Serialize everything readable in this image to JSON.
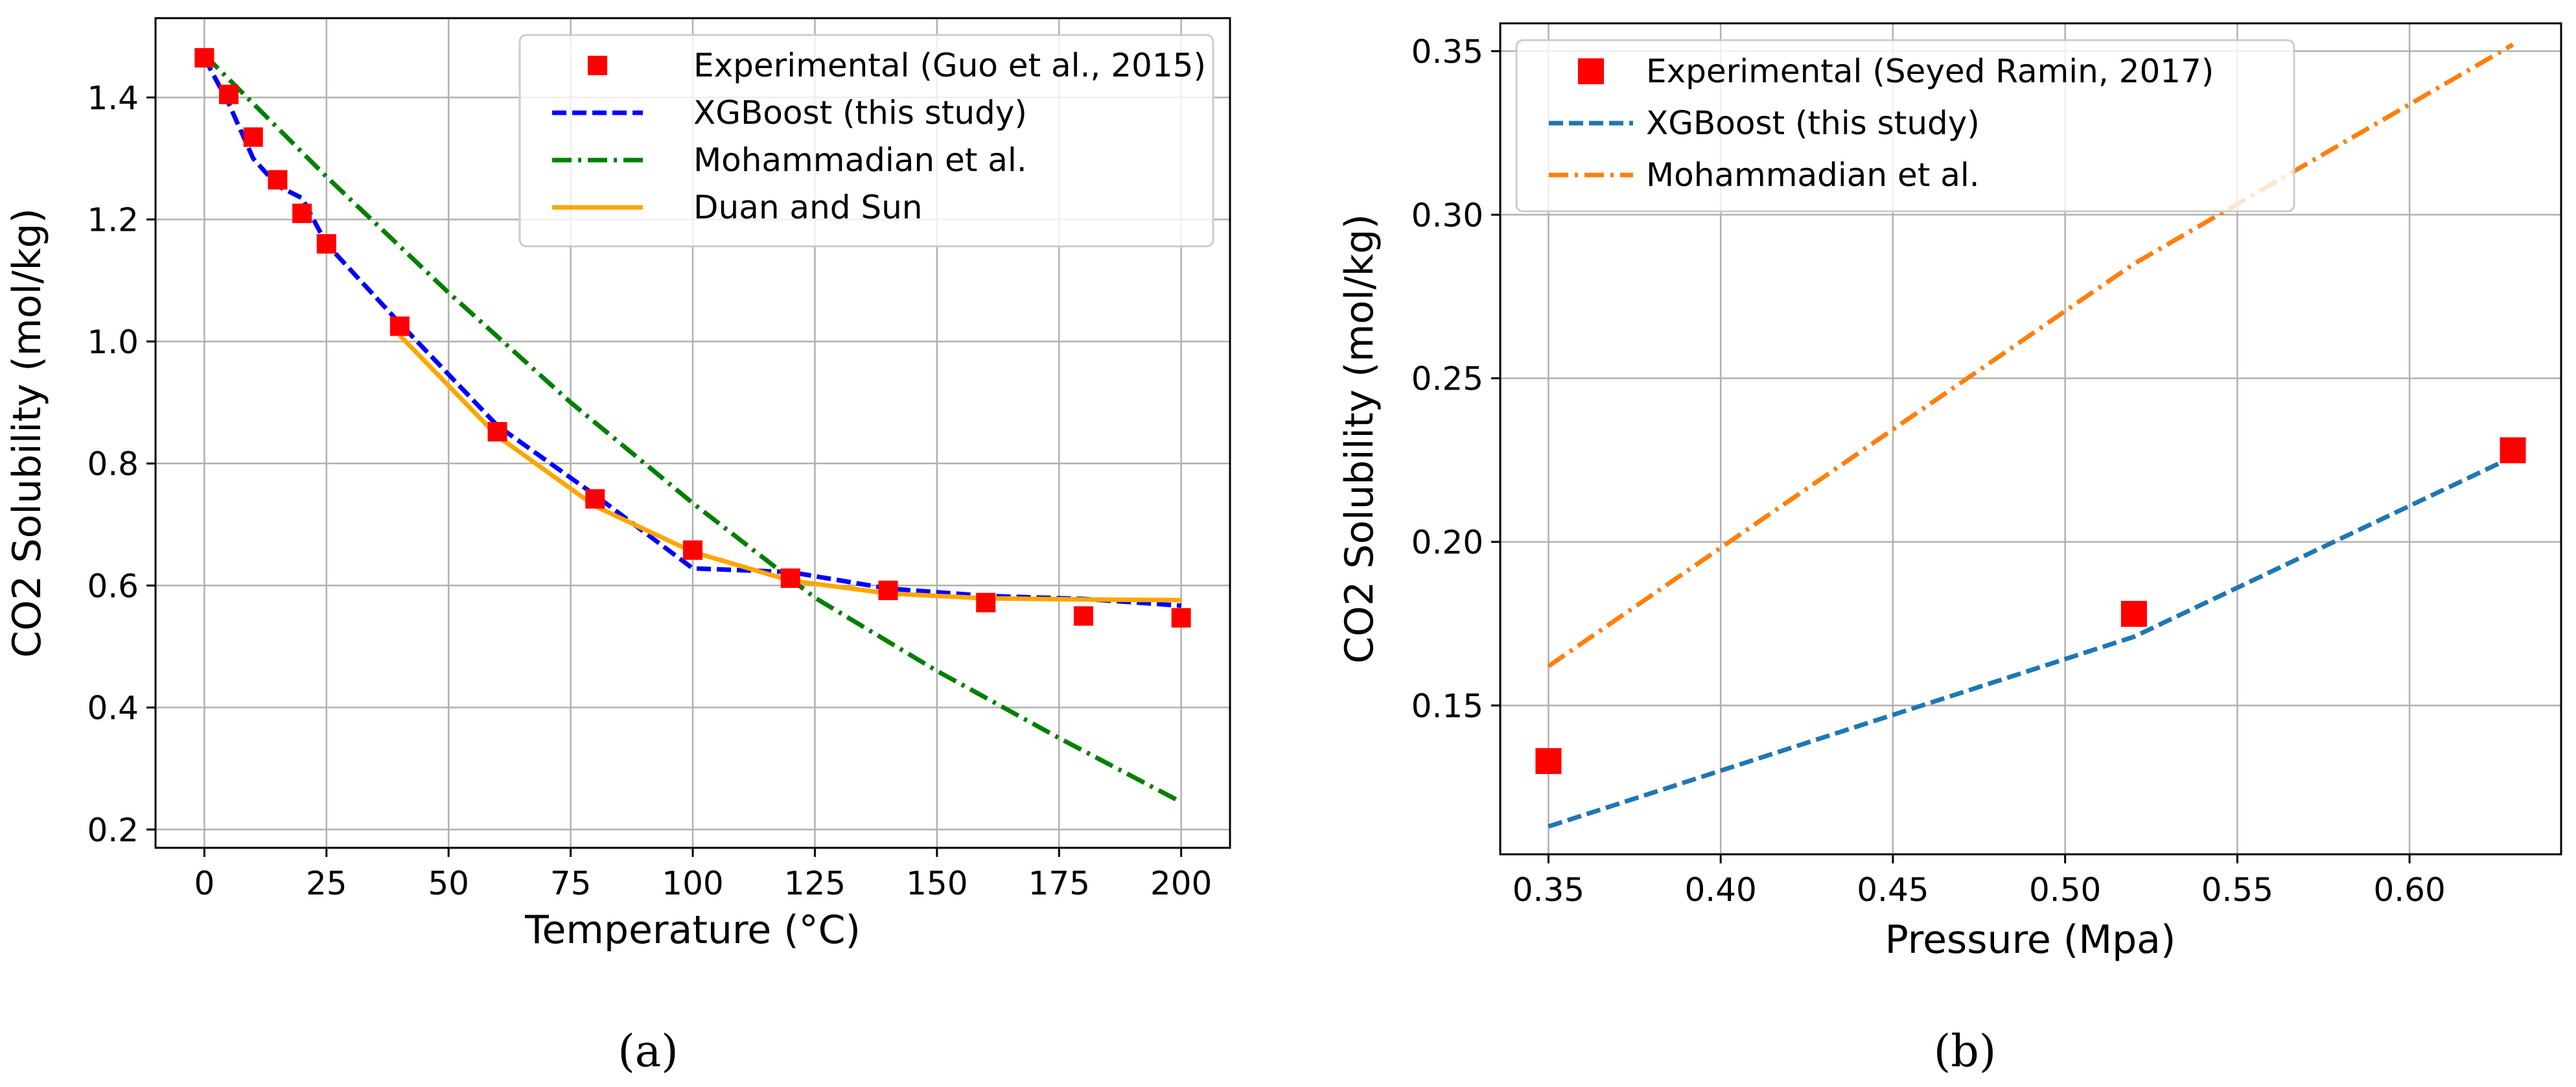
{
  "chart_data": [
    {
      "type": "line",
      "caption": "(a)",
      "xlabel": "Temperature (°C)",
      "ylabel": "CO2 Solubility (mol/kg)",
      "xlim": [
        -10,
        210
      ],
      "ylim": [
        0.17,
        1.53
      ],
      "xticks": [
        0,
        25,
        50,
        75,
        100,
        125,
        150,
        175,
        200
      ],
      "yticks": [
        0.2,
        0.4,
        0.6,
        0.8,
        1.0,
        1.2,
        1.4
      ],
      "xtick_labels": [
        "0",
        "25",
        "50",
        "75",
        "100",
        "125",
        "150",
        "175",
        "200"
      ],
      "ytick_labels": [
        "0.2",
        "0.4",
        "0.6",
        "0.8",
        "1.0",
        "1.2",
        "1.4"
      ],
      "grid": true,
      "legend_position": "top-right",
      "series": [
        {
          "name": "Experimental (Guo et al., 2015)",
          "kind": "scatter",
          "color": "#ff0000",
          "x": [
            0,
            5,
            10,
            15,
            20,
            25,
            40,
            60,
            80,
            100,
            120,
            140,
            160,
            180,
            200
          ],
          "y": [
            1.465,
            1.405,
            1.335,
            1.265,
            1.21,
            1.16,
            1.025,
            0.852,
            0.742,
            0.658,
            0.612,
            0.592,
            0.572,
            0.55,
            0.547
          ]
        },
        {
          "name": "XGBoost (this study)",
          "kind": "line",
          "style": "dashed",
          "color": "#0000ff",
          "x": [
            0,
            5,
            10,
            15,
            20,
            25,
            40,
            60,
            80,
            100,
            120,
            140,
            160,
            180,
            200
          ],
          "y": [
            1.465,
            1.39,
            1.3,
            1.255,
            1.235,
            1.16,
            1.03,
            0.862,
            0.748,
            0.628,
            0.622,
            0.595,
            0.583,
            0.578,
            0.567
          ]
        },
        {
          "name": "Mohammadian et al.",
          "kind": "line",
          "style": "dashdot",
          "color": "#008000",
          "x": [
            0,
            25,
            50,
            75,
            100,
            125,
            150,
            175,
            200
          ],
          "y": [
            1.47,
            1.27,
            1.08,
            0.9,
            0.735,
            0.58,
            0.46,
            0.35,
            0.245
          ]
        },
        {
          "name": "Duan and Sun",
          "kind": "line",
          "style": "solid",
          "color": "#ffa500",
          "x": [
            40,
            60,
            80,
            100,
            120,
            140,
            160,
            180,
            200
          ],
          "y": [
            1.01,
            0.845,
            0.73,
            0.655,
            0.608,
            0.587,
            0.579,
            0.577,
            0.576
          ]
        }
      ]
    },
    {
      "type": "line",
      "caption": "(b)",
      "xlabel": "Pressure (Mpa)",
      "ylabel": "CO2 Solubility (mol/kg)",
      "xlim": [
        0.336,
        0.644
      ],
      "ylim": [
        0.1045,
        0.3585
      ],
      "xticks": [
        0.35,
        0.4,
        0.45,
        0.5,
        0.55,
        0.6
      ],
      "yticks": [
        0.15,
        0.2,
        0.25,
        0.3,
        0.35
      ],
      "xtick_labels": [
        "0.35",
        "0.40",
        "0.45",
        "0.50",
        "0.55",
        "0.60"
      ],
      "ytick_labels": [
        "0.15",
        "0.20",
        "0.25",
        "0.30",
        "0.35"
      ],
      "grid": true,
      "legend_position": "top-left",
      "series": [
        {
          "name": "Experimental (Seyed Ramin, 2017)",
          "kind": "scatter",
          "color": "#ff0000",
          "x": [
            0.35,
            0.52,
            0.63
          ],
          "y": [
            0.133,
            0.178,
            0.228
          ]
        },
        {
          "name": "XGBoost (this study)",
          "kind": "line",
          "style": "dashed",
          "color": "#1f77b4",
          "x": [
            0.35,
            0.52,
            0.63
          ],
          "y": [
            0.113,
            0.171,
            0.226
          ]
        },
        {
          "name": "Mohammadian et al.",
          "kind": "line",
          "style": "dashdot",
          "color": "#ff7f0e",
          "x": [
            0.35,
            0.52,
            0.63
          ],
          "y": [
            0.162,
            0.285,
            0.352
          ]
        }
      ]
    }
  ]
}
